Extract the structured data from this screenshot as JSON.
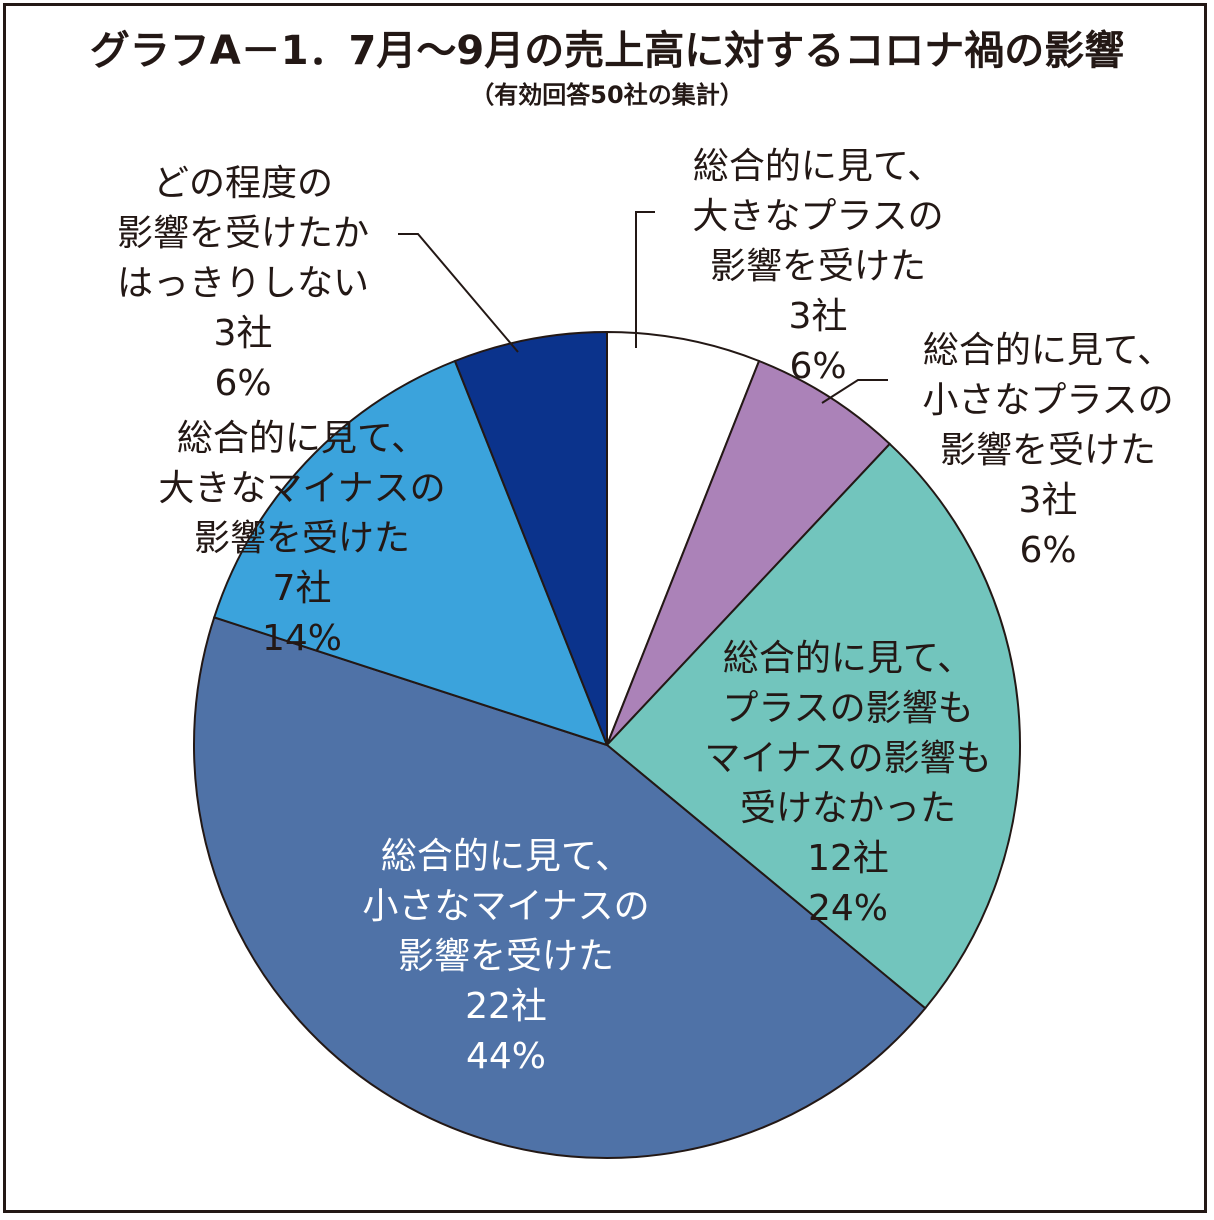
{
  "chart_data": {
    "type": "pie",
    "title": "グラフA－1．7月～9月の売上高に対するコロナ禍の影響",
    "subtitle": "（有効回答50社の集計）",
    "total": 50,
    "slices": [
      {
        "label_lines": [
          "総合的に見て、",
          "大きなプラスの",
          "影響を受けた"
        ],
        "count_label": "3社",
        "percent_label": "6%",
        "value": 3,
        "percent": 6,
        "color": "#ffffff",
        "text_color": "#231815"
      },
      {
        "label_lines": [
          "総合的に見て、",
          "小さなプラスの",
          "影響を受けた"
        ],
        "count_label": "3社",
        "percent_label": "6%",
        "value": 3,
        "percent": 6,
        "color": "#ab82b8",
        "text_color": "#231815"
      },
      {
        "label_lines": [
          "総合的に見て、",
          "プラスの影響も",
          "マイナスの影響も",
          "受けなかった"
        ],
        "count_label": "12社",
        "percent_label": "24%",
        "value": 12,
        "percent": 24,
        "color": "#72c5bd",
        "text_color": "#231815"
      },
      {
        "label_lines": [
          "総合的に見て、",
          "小さなマイナスの",
          "影響を受けた"
        ],
        "count_label": "22社",
        "percent_label": "44%",
        "value": 22,
        "percent": 44,
        "color": "#4f72a7",
        "text_color": "#ffffff"
      },
      {
        "label_lines": [
          "総合的に見て、",
          "大きなマイナスの",
          "影響を受けた"
        ],
        "count_label": "7社",
        "percent_label": "14%",
        "value": 7,
        "percent": 14,
        "color": "#3ba3dc",
        "text_color": "#231815"
      },
      {
        "label_lines": [
          "どの程度の",
          "影響を受けたか",
          "はっきりしない"
        ],
        "count_label": "3社",
        "percent_label": "6%",
        "value": 3,
        "percent": 6,
        "color": "#0b338c",
        "text_color": "#231815"
      }
    ],
    "start_angle": "12 o'clock",
    "direction": "clockwise",
    "legend": "none (labels placed on/near slices)"
  }
}
